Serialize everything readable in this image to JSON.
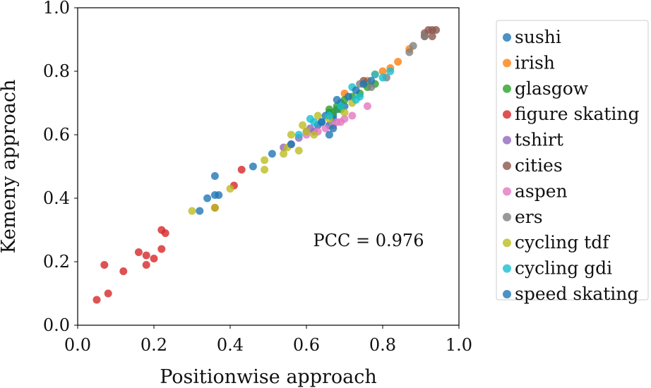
{
  "chart_data": {
    "type": "scatter",
    "xlabel": "Positionwise approach",
    "ylabel": "Kemeny approach",
    "xlim": [
      0.0,
      1.0
    ],
    "ylim": [
      0.0,
      1.0
    ],
    "xticks": [
      "0.0",
      "0.2",
      "0.4",
      "0.6",
      "0.8",
      "1.0"
    ],
    "yticks": [
      "0.0",
      "0.2",
      "0.4",
      "0.6",
      "0.8",
      "1.0"
    ],
    "grid": false,
    "legend_position": "right, outside",
    "annotation": "PCC = 0.976",
    "series": [
      {
        "name": "sushi",
        "color": "#1f77b4",
        "points": [
          [
            0.64,
            0.64
          ],
          [
            0.65,
            0.66
          ],
          [
            0.66,
            0.67
          ],
          [
            0.67,
            0.65
          ],
          [
            0.68,
            0.68
          ],
          [
            0.66,
            0.63
          ],
          [
            0.69,
            0.7
          ],
          [
            0.7,
            0.69
          ],
          [
            0.63,
            0.63
          ],
          [
            0.67,
            0.66
          ]
        ]
      },
      {
        "name": "irish",
        "color": "#ff7f0e",
        "points": [
          [
            0.7,
            0.73
          ],
          [
            0.75,
            0.76
          ],
          [
            0.78,
            0.79
          ],
          [
            0.8,
            0.8
          ],
          [
            0.82,
            0.81
          ],
          [
            0.84,
            0.83
          ],
          [
            0.87,
            0.87
          ],
          [
            0.76,
            0.77
          ]
        ]
      },
      {
        "name": "glasgow",
        "color": "#2ca02c",
        "points": [
          [
            0.66,
            0.68
          ],
          [
            0.68,
            0.69
          ],
          [
            0.7,
            0.71
          ],
          [
            0.72,
            0.72
          ],
          [
            0.74,
            0.73
          ],
          [
            0.76,
            0.75
          ],
          [
            0.78,
            0.76
          ],
          [
            0.67,
            0.67
          ],
          [
            0.69,
            0.68
          ]
        ]
      },
      {
        "name": "figure skating",
        "color": "#d62728",
        "points": [
          [
            0.05,
            0.08
          ],
          [
            0.07,
            0.19
          ],
          [
            0.08,
            0.1
          ],
          [
            0.12,
            0.17
          ],
          [
            0.16,
            0.23
          ],
          [
            0.18,
            0.22
          ],
          [
            0.18,
            0.19
          ],
          [
            0.2,
            0.21
          ],
          [
            0.22,
            0.24
          ],
          [
            0.22,
            0.3
          ],
          [
            0.23,
            0.29
          ],
          [
            0.36,
            0.37
          ],
          [
            0.41,
            0.44
          ],
          [
            0.43,
            0.49
          ]
        ]
      },
      {
        "name": "tshirt",
        "color": "#9467bd",
        "points": [
          [
            0.54,
            0.56
          ],
          [
            0.56,
            0.57
          ],
          [
            0.58,
            0.59
          ],
          [
            0.6,
            0.61
          ],
          [
            0.61,
            0.62
          ],
          [
            0.62,
            0.61
          ]
        ]
      },
      {
        "name": "cities",
        "color": "#8c564b",
        "points": [
          [
            0.91,
            0.92
          ],
          [
            0.92,
            0.93
          ],
          [
            0.93,
            0.93
          ],
          [
            0.94,
            0.93
          ],
          [
            0.93,
            0.91
          ],
          [
            0.91,
            0.91
          ],
          [
            0.75,
            0.77
          ]
        ]
      },
      {
        "name": "aspen",
        "color": "#e377c2",
        "points": [
          [
            0.6,
            0.6
          ],
          [
            0.63,
            0.61
          ],
          [
            0.65,
            0.62
          ],
          [
            0.67,
            0.63
          ],
          [
            0.68,
            0.64
          ],
          [
            0.69,
            0.64
          ],
          [
            0.7,
            0.65
          ],
          [
            0.72,
            0.66
          ],
          [
            0.76,
            0.69
          ]
        ]
      },
      {
        "name": "ers",
        "color": "#7f7f7f",
        "points": [
          [
            0.74,
            0.76
          ],
          [
            0.77,
            0.75
          ],
          [
            0.81,
            0.78
          ],
          [
            0.87,
            0.86
          ],
          [
            0.88,
            0.88
          ],
          [
            0.91,
            0.91
          ]
        ]
      },
      {
        "name": "cycling tdf",
        "color": "#bcbd22",
        "points": [
          [
            0.3,
            0.36
          ],
          [
            0.36,
            0.37
          ],
          [
            0.4,
            0.43
          ],
          [
            0.49,
            0.49
          ],
          [
            0.49,
            0.52
          ],
          [
            0.54,
            0.54
          ],
          [
            0.55,
            0.56
          ],
          [
            0.56,
            0.6
          ],
          [
            0.58,
            0.55
          ],
          [
            0.59,
            0.63
          ],
          [
            0.6,
            0.61
          ],
          [
            0.62,
            0.6
          ],
          [
            0.63,
            0.66
          ],
          [
            0.66,
            0.65
          ],
          [
            0.7,
            0.67
          ],
          [
            0.72,
            0.7
          ]
        ]
      },
      {
        "name": "cycling gdi",
        "color": "#17becf",
        "points": [
          [
            0.58,
            0.6
          ],
          [
            0.61,
            0.65
          ],
          [
            0.62,
            0.64
          ],
          [
            0.66,
            0.66
          ],
          [
            0.69,
            0.69
          ],
          [
            0.72,
            0.75
          ],
          [
            0.74,
            0.72
          ],
          [
            0.78,
            0.79
          ],
          [
            0.8,
            0.78
          ],
          [
            0.82,
            0.8
          ],
          [
            0.73,
            0.71
          ]
        ]
      },
      {
        "name": "speed skating",
        "color": "#1f77b4",
        "points": [
          [
            0.32,
            0.36
          ],
          [
            0.34,
            0.4
          ],
          [
            0.36,
            0.41
          ],
          [
            0.36,
            0.47
          ],
          [
            0.37,
            0.41
          ],
          [
            0.46,
            0.5
          ],
          [
            0.51,
            0.54
          ],
          [
            0.56,
            0.57
          ],
          [
            0.64,
            0.64
          ],
          [
            0.66,
            0.6
          ],
          [
            0.67,
            0.62
          ],
          [
            0.68,
            0.71
          ],
          [
            0.71,
            0.72
          ],
          [
            0.73,
            0.74
          ],
          [
            0.75,
            0.76
          ],
          [
            0.77,
            0.77
          ]
        ]
      }
    ]
  }
}
